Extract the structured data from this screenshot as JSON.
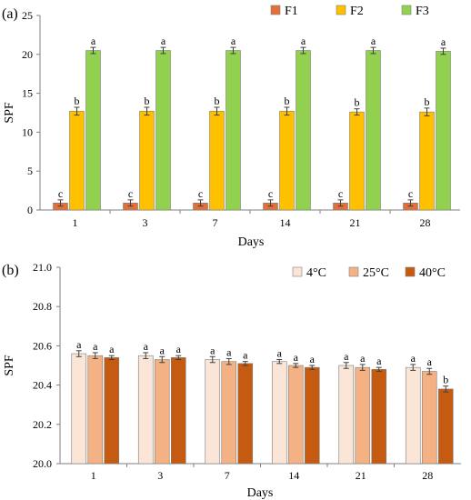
{
  "panels": [
    {
      "label": "(a)"
    },
    {
      "label": "(b)"
    }
  ],
  "chart_data": [
    {
      "type": "bar",
      "panel": "(a)",
      "title": "",
      "xlabel": "Days",
      "ylabel": "SPF",
      "ylim": [
        0,
        25
      ],
      "yticks": [
        0,
        5,
        10,
        15,
        20,
        25
      ],
      "grid": false,
      "legend_position": "top-right",
      "categories": [
        "1",
        "3",
        "7",
        "14",
        "21",
        "28"
      ],
      "series": [
        {
          "name": "F1",
          "color": "#e2703a",
          "values": [
            0.9,
            0.9,
            0.9,
            0.9,
            0.9,
            0.9
          ],
          "errors": [
            0.4,
            0.4,
            0.4,
            0.4,
            0.4,
            0.4
          ],
          "labels": [
            "c",
            "c",
            "c",
            "c",
            "c",
            "c"
          ]
        },
        {
          "name": "F2",
          "color": "#ffc000",
          "values": [
            12.7,
            12.7,
            12.7,
            12.7,
            12.6,
            12.6
          ],
          "errors": [
            0.5,
            0.5,
            0.5,
            0.5,
            0.4,
            0.5
          ],
          "labels": [
            "b",
            "b",
            "b",
            "b",
            "b",
            "b"
          ]
        },
        {
          "name": "F3",
          "color": "#92d050",
          "values": [
            20.5,
            20.5,
            20.5,
            20.5,
            20.5,
            20.4
          ],
          "errors": [
            0.4,
            0.4,
            0.4,
            0.4,
            0.4,
            0.4
          ],
          "labels": [
            "a",
            "a",
            "a",
            "a",
            "a",
            "a"
          ]
        }
      ]
    },
    {
      "type": "bar",
      "panel": "(b)",
      "title": "",
      "xlabel": "Days",
      "ylabel": "SPF",
      "ylim": [
        20,
        21
      ],
      "yticks": [
        20,
        20.2,
        20.4,
        20.6,
        20.8,
        21
      ],
      "grid": false,
      "legend_position": "top-right",
      "categories": [
        "1",
        "3",
        "7",
        "14",
        "21",
        "28"
      ],
      "series": [
        {
          "name": "4°C",
          "color": "#fbe5d6",
          "values": [
            20.56,
            20.55,
            20.53,
            20.52,
            20.5,
            20.49
          ],
          "errors": [
            0.015,
            0.015,
            0.015,
            0.01,
            0.015,
            0.015
          ],
          "labels": [
            "a",
            "a",
            "a",
            "a",
            "a",
            "a"
          ]
        },
        {
          "name": "25°C",
          "color": "#f4b183",
          "values": [
            20.55,
            20.53,
            20.52,
            20.5,
            20.49,
            20.47
          ],
          "errors": [
            0.015,
            0.015,
            0.015,
            0.01,
            0.015,
            0.015
          ],
          "labels": [
            "a",
            "a",
            "a",
            "a",
            "a",
            "a"
          ]
        },
        {
          "name": "40°C",
          "color": "#c55a11",
          "values": [
            20.54,
            20.54,
            20.51,
            20.49,
            20.48,
            20.38
          ],
          "errors": [
            0.01,
            0.01,
            0.01,
            0.01,
            0.01,
            0.015
          ],
          "labels": [
            "a",
            "a",
            "a",
            "a",
            "a",
            "b"
          ]
        }
      ]
    }
  ]
}
